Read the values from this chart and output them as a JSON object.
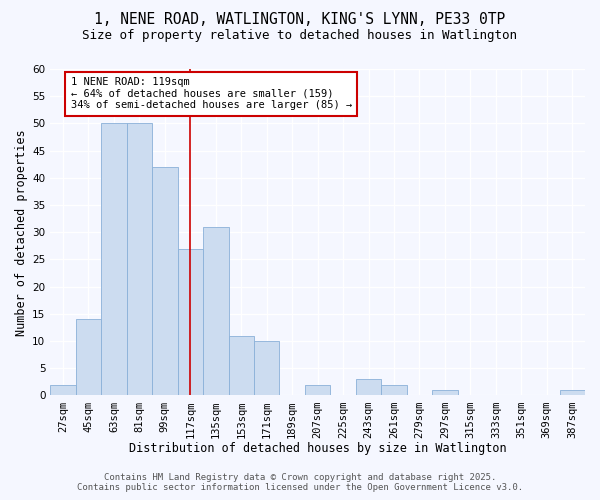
{
  "title": "1, NENE ROAD, WATLINGTON, KING'S LYNN, PE33 0TP",
  "subtitle": "Size of property relative to detached houses in Watlington",
  "xlabel": "Distribution of detached houses by size in Watlington",
  "ylabel": "Number of detached properties",
  "categories": [
    "27sqm",
    "45sqm",
    "63sqm",
    "81sqm",
    "99sqm",
    "117sqm",
    "135sqm",
    "153sqm",
    "171sqm",
    "189sqm",
    "207sqm",
    "225sqm",
    "243sqm",
    "261sqm",
    "279sqm",
    "297sqm",
    "315sqm",
    "333sqm",
    "351sqm",
    "369sqm",
    "387sqm"
  ],
  "values": [
    2,
    14,
    50,
    50,
    42,
    27,
    31,
    11,
    10,
    0,
    2,
    0,
    3,
    2,
    0,
    1,
    0,
    0,
    0,
    0,
    1
  ],
  "bar_color": "#ccdcf0",
  "bar_edge_color": "#8ab0d8",
  "bar_width": 1.0,
  "ylim": [
    0,
    60
  ],
  "yticks": [
    0,
    5,
    10,
    15,
    20,
    25,
    30,
    35,
    40,
    45,
    50,
    55,
    60
  ],
  "vline_x": 5,
  "vline_color": "#cc0000",
  "annotation_title": "1 NENE ROAD: 119sqm",
  "annotation_line1": "← 64% of detached houses are smaller (159)",
  "annotation_line2": "34% of semi-detached houses are larger (85) →",
  "annotation_box_color": "#ffffff",
  "annotation_box_edge_color": "#cc0000",
  "footnote1": "Contains HM Land Registry data © Crown copyright and database right 2025.",
  "footnote2": "Contains public sector information licensed under the Open Government Licence v3.0.",
  "background_color": "#f5f7ff",
  "plot_bg_color": "#f5f7ff",
  "grid_color": "#ffffff",
  "title_fontsize": 10.5,
  "subtitle_fontsize": 9,
  "axis_label_fontsize": 8.5,
  "tick_fontsize": 7.5,
  "annotation_fontsize": 7.5,
  "footnote_fontsize": 6.5
}
